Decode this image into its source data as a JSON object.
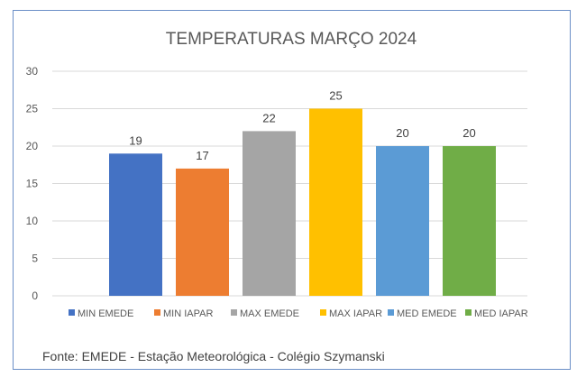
{
  "chart_data": {
    "type": "bar",
    "title": "TEMPERATURAS MARÇO 2024",
    "categories": [
      "MIN EMEDE",
      "MIN IAPAR",
      "MAX EMEDE",
      "MAX IAPAR",
      "MED EMEDE",
      "MED IAPAR"
    ],
    "values": [
      19,
      17,
      22,
      25,
      20,
      20
    ],
    "colors": [
      "#4472c4",
      "#ed7d31",
      "#a5a5a5",
      "#ffc000",
      "#5b9bd5",
      "#70ad47"
    ],
    "ylim": [
      0,
      30
    ],
    "yticks": [
      0,
      5,
      10,
      15,
      20,
      25,
      30
    ],
    "grid": true,
    "legend_position": "bottom",
    "xlabel": "",
    "ylabel": ""
  },
  "footer": {
    "source": "Fonte: EMEDE - Estação Meteorológica - Colégio Szymanski"
  }
}
